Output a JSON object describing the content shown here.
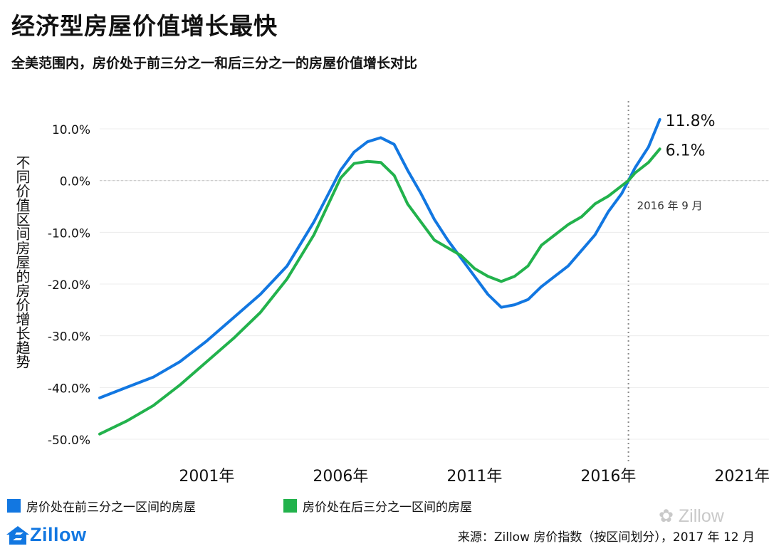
{
  "header": {
    "title": "经济型房屋价值增长最快",
    "subtitle": "全美范围内，房价处于前三分之一和后三分之一的房屋价值增长对比"
  },
  "legend": {
    "items": [
      {
        "label": "房价处在前三分之一区间的房屋",
        "color": "#1277e1"
      },
      {
        "label": "房价处在后三分之一区间的房屋",
        "color": "#22b24c"
      }
    ]
  },
  "footer": {
    "logo_text": "Zillow",
    "source": "来源：Zillow 房价指数（按区间划分），2017 年 12 月",
    "watermark": "Zillow"
  },
  "chart_data": {
    "type": "line",
    "ylabel": "不同价值区间房屋的房价增长趋势",
    "xlim": [
      1997.0,
      2022.0
    ],
    "ylim": [
      -50,
      10
    ],
    "yticks": [
      {
        "value": 10,
        "label": "10.0%"
      },
      {
        "value": 0,
        "label": "0.0%"
      },
      {
        "value": -10,
        "label": "-10.0%"
      },
      {
        "value": -20,
        "label": "-20.0%"
      },
      {
        "value": -30,
        "label": "-30.0%"
      },
      {
        "value": -40,
        "label": "-40.0%"
      },
      {
        "value": -50,
        "label": "-50.0%"
      }
    ],
    "xticks": [
      {
        "value": 2001,
        "label": "2001年"
      },
      {
        "value": 2006,
        "label": "2006年"
      },
      {
        "value": 2011,
        "label": "2011年"
      },
      {
        "value": 2016,
        "label": "2016年"
      },
      {
        "value": 2021,
        "label": "2021年"
      }
    ],
    "grid": true,
    "annotation": {
      "x": 2016.75,
      "label": "2016 年 9 月"
    },
    "series": [
      {
        "name": "房价处在前三分之一区间的房屋",
        "color": "#1277e1",
        "end_label": "11.8%",
        "points": [
          [
            1997.0,
            -42.0
          ],
          [
            1998.0,
            -40.0
          ],
          [
            1999.0,
            -38.0
          ],
          [
            2000.0,
            -35.0
          ],
          [
            2001.0,
            -31.0
          ],
          [
            2002.0,
            -26.5
          ],
          [
            2003.0,
            -22.0
          ],
          [
            2004.0,
            -16.5
          ],
          [
            2005.0,
            -8.0
          ],
          [
            2005.5,
            -3.0
          ],
          [
            2006.0,
            2.0
          ],
          [
            2006.5,
            5.5
          ],
          [
            2007.0,
            7.5
          ],
          [
            2007.5,
            8.3
          ],
          [
            2008.0,
            7.0
          ],
          [
            2008.5,
            2.0
          ],
          [
            2009.0,
            -2.5
          ],
          [
            2009.5,
            -7.5
          ],
          [
            2010.0,
            -11.5
          ],
          [
            2010.5,
            -15.0
          ],
          [
            2011.0,
            -18.5
          ],
          [
            2011.5,
            -22.0
          ],
          [
            2012.0,
            -24.5
          ],
          [
            2012.5,
            -24.0
          ],
          [
            2013.0,
            -23.0
          ],
          [
            2013.5,
            -20.5
          ],
          [
            2014.0,
            -18.5
          ],
          [
            2014.5,
            -16.5
          ],
          [
            2015.0,
            -13.5
          ],
          [
            2015.5,
            -10.5
          ],
          [
            2016.0,
            -6.0
          ],
          [
            2016.5,
            -2.5
          ],
          [
            2016.75,
            0.0
          ],
          [
            2017.0,
            2.5
          ],
          [
            2017.5,
            6.5
          ],
          [
            2017.92,
            11.8
          ]
        ]
      },
      {
        "name": "房价处在后三分之一区间的房屋",
        "color": "#22b24c",
        "end_label": "6.1%",
        "points": [
          [
            1997.0,
            -49.0
          ],
          [
            1998.0,
            -46.5
          ],
          [
            1999.0,
            -43.5
          ],
          [
            2000.0,
            -39.5
          ],
          [
            2001.0,
            -35.0
          ],
          [
            2002.0,
            -30.5
          ],
          [
            2003.0,
            -25.5
          ],
          [
            2004.0,
            -19.0
          ],
          [
            2005.0,
            -10.5
          ],
          [
            2005.5,
            -5.0
          ],
          [
            2006.0,
            0.5
          ],
          [
            2006.5,
            3.3
          ],
          [
            2007.0,
            3.7
          ],
          [
            2007.5,
            3.5
          ],
          [
            2008.0,
            1.0
          ],
          [
            2008.5,
            -4.5
          ],
          [
            2009.0,
            -8.0
          ],
          [
            2009.5,
            -11.5
          ],
          [
            2010.0,
            -13.0
          ],
          [
            2010.5,
            -14.5
          ],
          [
            2011.0,
            -17.0
          ],
          [
            2011.5,
            -18.5
          ],
          [
            2012.0,
            -19.5
          ],
          [
            2012.5,
            -18.5
          ],
          [
            2013.0,
            -16.5
          ],
          [
            2013.5,
            -12.5
          ],
          [
            2014.0,
            -10.5
          ],
          [
            2014.5,
            -8.5
          ],
          [
            2015.0,
            -7.0
          ],
          [
            2015.5,
            -4.5
          ],
          [
            2016.0,
            -3.0
          ],
          [
            2016.5,
            -1.0
          ],
          [
            2016.75,
            0.0
          ],
          [
            2017.0,
            1.5
          ],
          [
            2017.5,
            3.5
          ],
          [
            2017.92,
            6.1
          ]
        ]
      }
    ]
  }
}
